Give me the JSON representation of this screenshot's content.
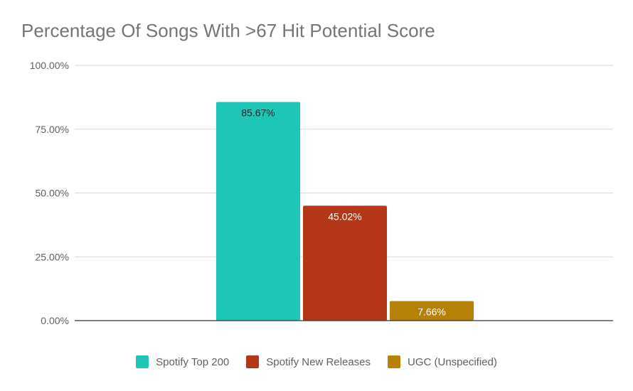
{
  "chart_data": {
    "type": "bar",
    "title": "Percentage Of Songs With >67 Hit Potential Score",
    "xlabel": "",
    "ylabel": "",
    "ylim": [
      0,
      100
    ],
    "y_ticks": [
      0,
      25,
      50,
      75,
      100
    ],
    "y_tick_labels": [
      "0.00%",
      "25.00%",
      "50.00%",
      "75.00%",
      "100.00%"
    ],
    "grid": true,
    "legend_position": "bottom",
    "series": [
      {
        "name": "Spotify Top 200",
        "value": 85.67,
        "label": "85.67%",
        "color": "#1ec6b8",
        "label_color": "#222222"
      },
      {
        "name": "Spotify New Releases",
        "value": 45.02,
        "label": "45.02%",
        "color": "#b5371a",
        "label_color": "#ffffff"
      },
      {
        "name": "UGC (Unspecified)",
        "value": 7.66,
        "label": "7.66%",
        "color": "#b58207",
        "label_color": "#ffffff"
      }
    ]
  }
}
